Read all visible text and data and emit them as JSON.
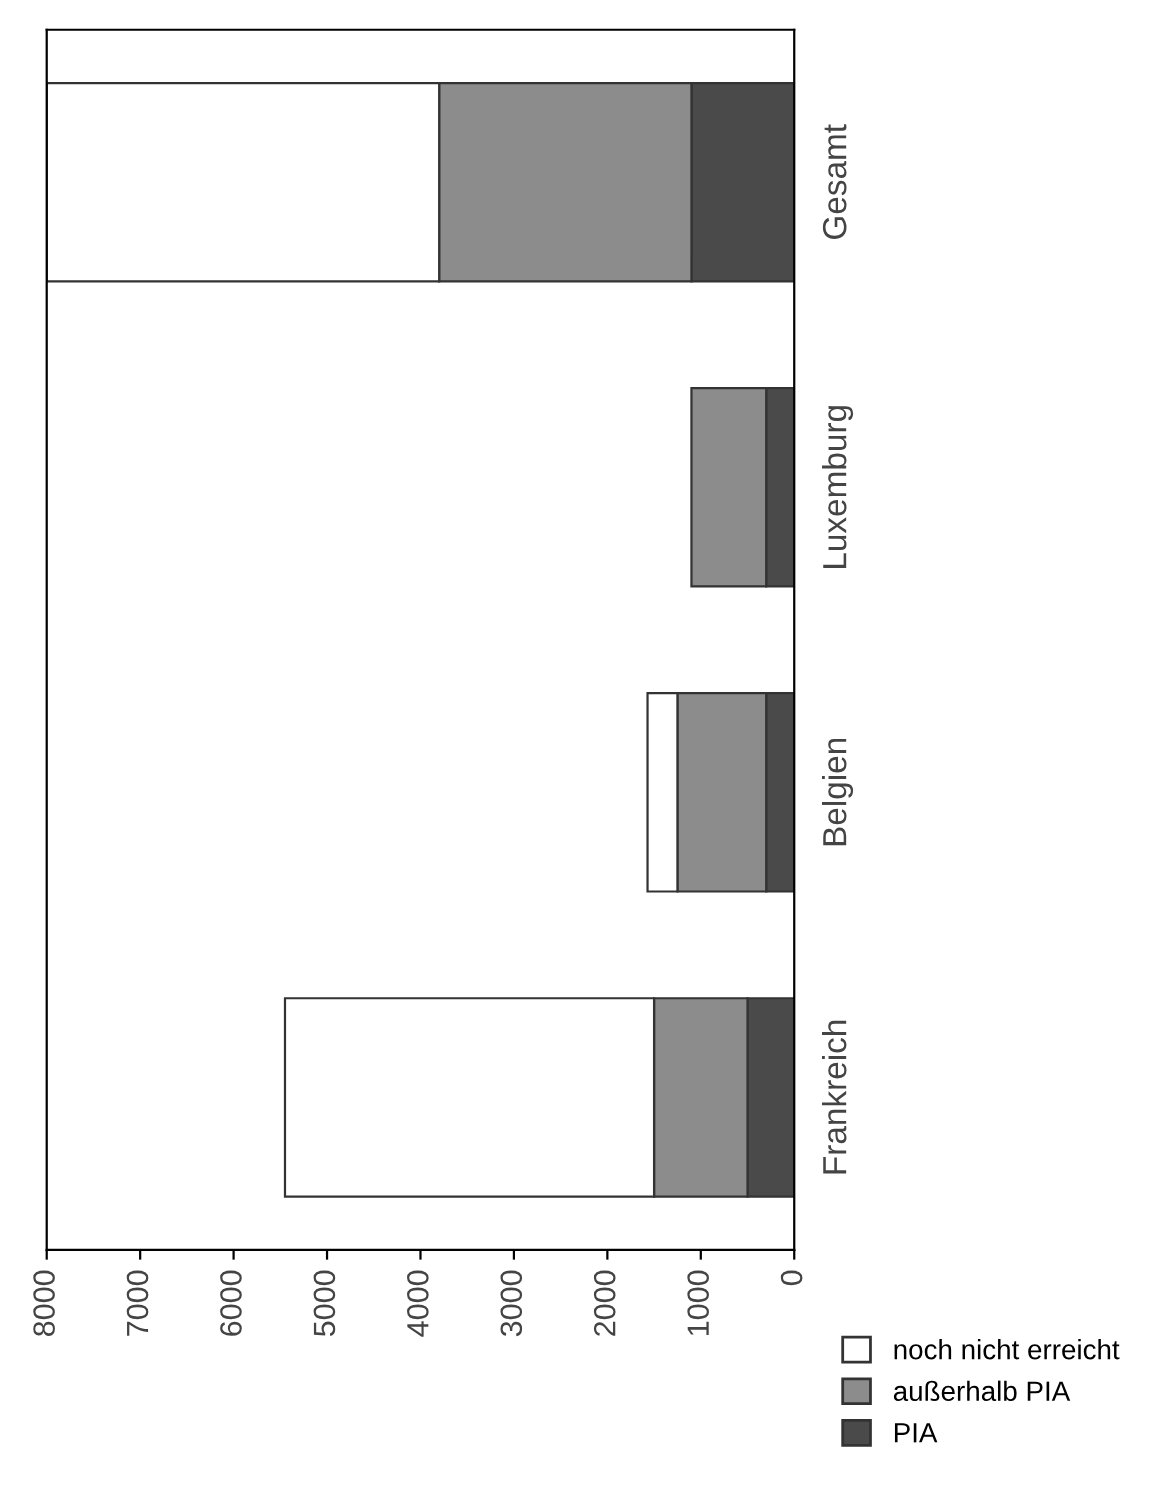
{
  "chart_data": {
    "type": "bar",
    "orientation": "horizontal",
    "stacked": true,
    "categories": [
      "Gesamt",
      "Luxemburg",
      "Belgien",
      "Frankreich"
    ],
    "series": [
      {
        "name": "PIA",
        "color": "#4a4a4a",
        "values": [
          1100,
          300,
          300,
          500
        ]
      },
      {
        "name": "außerhalb PIA",
        "color": "#8c8c8c",
        "values": [
          2700,
          800,
          950,
          1000
        ]
      },
      {
        "name": "noch nicht erreicht",
        "color": "#ffffff",
        "values": [
          4200,
          null,
          320,
          3950
        ]
      }
    ],
    "xlim": [
      8000,
      0
    ],
    "xticks": [
      0,
      1000,
      2000,
      3000,
      4000,
      5000,
      6000,
      7000,
      8000
    ],
    "grid": false,
    "legend": "bottom right"
  }
}
